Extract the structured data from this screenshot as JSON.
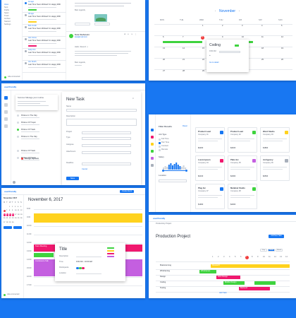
{
  "colors": {
    "accent": "#1877f2",
    "green": "#3ed33e",
    "yellow": "#ffd21e",
    "pink": "#f0186e",
    "purple": "#c45fe0",
    "red": "#f03c3c",
    "gray": "#a8b0bb"
  },
  "inbox": {
    "items": [
      {
        "time": "1d ago",
        "title": "Last Time Team Worked I'm Happy With"
      },
      {
        "time": "3d ago",
        "title": "Last Time Team Worked I'm Happy With"
      },
      {
        "time": "Bob Smith",
        "title": "Last Time Team Worked I'm Happy With"
      },
      {
        "time": "Jan Jones",
        "title": "Last Time Team Worked I'm Happy With"
      },
      {
        "time": "Kelly Kim",
        "title": "Last Time Team Worked I'm Happy With"
      },
      {
        "time": "Jim Smith",
        "title": "Last Time Team Worked I'm Happy With"
      }
    ],
    "sidebar": [
      "Inbox",
      "Sent",
      "Drafts",
      "Spam",
      "Trash",
      "Archive",
      "Starred",
      "Settings"
    ],
    "greeting": "Hello, Steven! :)",
    "sign": "Best regards,",
    "sender": "Kate Stefanski",
    "sender_mail": "kate@mail.com"
  },
  "calendar": {
    "month": "November",
    "days": [
      "MON",
      "TUE",
      "WED",
      "THU",
      "FRI",
      "SAT",
      "SUN"
    ],
    "numbers": [
      [
        "",
        "",
        "1",
        "2",
        "3",
        "4",
        "5"
      ],
      [
        "6",
        "7",
        "8",
        "9",
        "10",
        "11",
        "12"
      ],
      [
        "13",
        "14",
        "15",
        "16",
        "17",
        "18",
        "19"
      ],
      [
        "20",
        "21",
        "22",
        "23",
        "24",
        "25",
        "26"
      ],
      [
        "27",
        "28",
        "29",
        "30",
        "",
        "",
        ""
      ]
    ],
    "today": "8",
    "popup_title": "Coding",
    "popup_time": "9:00 AM",
    "popup_link": "Go to detail"
  },
  "tasks": {
    "brand": "userfriendly",
    "popup_title": "Tuesday, November 7",
    "popup_sub": "Summer Manage your routine",
    "form_title": "New Task",
    "labels": [
      "Name",
      "Description",
      "Project",
      "Type",
      "Assignee",
      "Attachment",
      "Deadline"
    ],
    "side_items": [
      "Today",
      "Tomorrow",
      "Overdue",
      "Closed",
      "Scheduled"
    ],
    "task_list": [
      "Picture In The Sky",
      "Picture Of Tropic",
      "Picture Of Track",
      "Picture In The Sky",
      "Picture Of Track",
      "Picture Of Tropic"
    ],
    "tag": "Design System",
    "save": "Save",
    "cancel": "Cancel"
  },
  "filter": {
    "title": "Filter Results",
    "reset": "Reset",
    "sections": [
      "Salary",
      "Job Type",
      "Location"
    ],
    "options": [
      "Full Time",
      "Part Time",
      "Contract",
      "Remote"
    ],
    "jobs": [
      {
        "title": "Product Lead",
        "company": "Company 01",
        "salary": "$2200"
      },
      {
        "title": "Product Lead",
        "company": "Company 02",
        "salary": "$2400"
      },
      {
        "title": "Word Studio",
        "company": "Company 03",
        "salary": "$1800"
      },
      {
        "title": "Lorem Ipsum",
        "company": "Company 04",
        "salary": "$2100"
      },
      {
        "title": "Plato Inc",
        "company": "Company 05",
        "salary": "$2000"
      },
      {
        "title": "Ad Agency",
        "company": "Company 06",
        "salary": "$2500"
      },
      {
        "title": "Plug Inc",
        "company": "Company 07",
        "salary": "$1900"
      },
      {
        "title": "Metalnet Studio",
        "company": "Company 08",
        "salary": "$2300"
      }
    ]
  },
  "day": {
    "brand": "userfriendly",
    "date": "November 6, 2017",
    "button": "Create Event",
    "mini_month": "November 2017",
    "mini_days": [
      "M",
      "T",
      "W",
      "T",
      "F",
      "S",
      "S"
    ],
    "hours": [
      "8:00",
      "9:00",
      "10:00",
      "11:00",
      "12:00",
      "13:00",
      "14:00",
      "15:00",
      "16:00",
      "17:00"
    ],
    "popup_title": "Title",
    "popup_rows": [
      "Description",
      "Time",
      "Participants",
      "Location"
    ],
    "popup_time": "9:00 AM - 10:00 AM",
    "events": [
      "Team Meeting",
      "Read Papers",
      "Team Lunch",
      "Conference Talk"
    ]
  },
  "gantt": {
    "brand": "userfriendly",
    "crumb": "Productivity Project",
    "title": "Production Project",
    "button": "Add New Task",
    "view_tabs": [
      "Day",
      "Week",
      "Month"
    ],
    "rows": [
      "Brainstorming",
      "Wireframing",
      "Design",
      "Coding",
      "Testing"
    ],
    "bars": [
      "Research",
      "Wireframes",
      "Web Design",
      "Mobile Design",
      "Backend"
    ],
    "add": "Add Task",
    "today": "7"
  },
  "footer": {
    "status": "Ada connected"
  }
}
